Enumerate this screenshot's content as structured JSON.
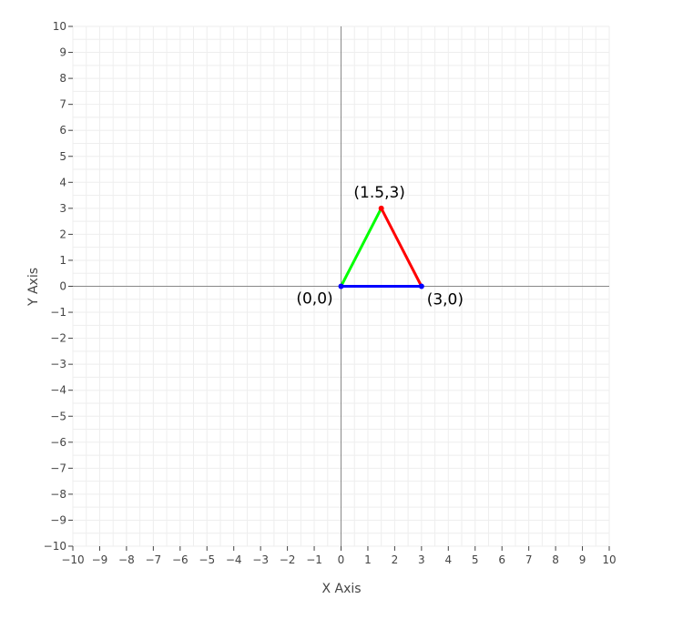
{
  "chart_data": {
    "type": "line",
    "title": "",
    "xlabel": "X Axis",
    "ylabel": "Y Axis",
    "xlim": [
      -10,
      10
    ],
    "ylim": [
      -10,
      10
    ],
    "x_ticks": [
      -10,
      -9,
      -8,
      -7,
      -6,
      -5,
      -4,
      -3,
      -2,
      -1,
      0,
      1,
      2,
      3,
      4,
      5,
      6,
      7,
      8,
      9,
      10
    ],
    "y_ticks": [
      -10,
      -9,
      -8,
      -7,
      -6,
      -5,
      -4,
      -3,
      -2,
      -1,
      0,
      1,
      2,
      3,
      4,
      5,
      6,
      7,
      8,
      9,
      10
    ],
    "minor_grid_step": 0.5,
    "grid": true,
    "legend": "none",
    "series": [
      {
        "x": [
          0,
          1.5
        ],
        "y": [
          0,
          3
        ],
        "color": "#00ff00"
      },
      {
        "x": [
          1.5,
          3
        ],
        "y": [
          3,
          0
        ],
        "color": "#ff0000"
      },
      {
        "x": [
          3,
          0
        ],
        "y": [
          0,
          0
        ],
        "color": "#0000ff"
      }
    ],
    "points": [
      {
        "x": 0,
        "y": 0,
        "label": "(0,0)",
        "color": "#0000ff"
      },
      {
        "x": 1.5,
        "y": 3,
        "label": "(1.5,3)",
        "color": "#ff0000"
      },
      {
        "x": 3,
        "y": 0,
        "label": "(3,0)",
        "color": "#0000ff"
      }
    ],
    "colors": {
      "grid": "#eeeeee",
      "zero_line": "#888888",
      "text": "#444444"
    }
  }
}
